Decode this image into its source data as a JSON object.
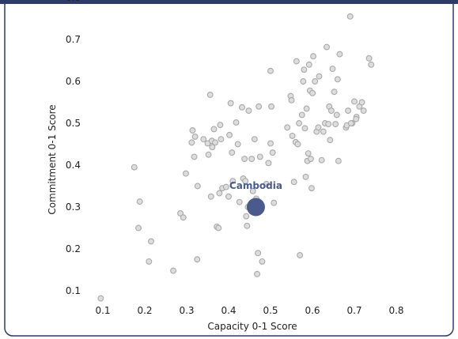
{
  "chart_data": {
    "type": "scatter",
    "xlabel": "Capacity 0-1 Score",
    "ylabel": "Commitment 0-1 Score",
    "xlim": [
      0.1,
      0.8
    ],
    "ylim": [
      0.1,
      0.8
    ],
    "xticks": [
      "0.1",
      "0.2",
      "0.3",
      "0.4",
      "0.5",
      "0.6",
      "0.7",
      "0.8"
    ],
    "yticks": [
      "0.1",
      "0.2",
      "0.3",
      "0.4",
      "0.5",
      "0.6",
      "0.7",
      "0.8"
    ],
    "grid": false,
    "legend": "none",
    "highlight": {
      "label": "Cambodia",
      "x": 0.465,
      "y": 0.3
    },
    "points": [
      [
        0.095,
        0.082
      ],
      [
        0.175,
        0.395
      ],
      [
        0.185,
        0.25
      ],
      [
        0.188,
        0.313
      ],
      [
        0.21,
        0.17
      ],
      [
        0.215,
        0.218
      ],
      [
        0.268,
        0.148
      ],
      [
        0.285,
        0.285
      ],
      [
        0.292,
        0.275
      ],
      [
        0.298,
        0.38
      ],
      [
        0.312,
        0.454
      ],
      [
        0.314,
        0.483
      ],
      [
        0.318,
        0.42
      ],
      [
        0.32,
        0.468
      ],
      [
        0.325,
        0.175
      ],
      [
        0.326,
        0.35
      ],
      [
        0.34,
        0.462
      ],
      [
        0.35,
        0.452
      ],
      [
        0.352,
        0.425
      ],
      [
        0.356,
        0.568
      ],
      [
        0.358,
        0.325
      ],
      [
        0.36,
        0.458
      ],
      [
        0.361,
        0.443
      ],
      [
        0.365,
        0.486
      ],
      [
        0.368,
        0.454
      ],
      [
        0.372,
        0.253
      ],
      [
        0.376,
        0.25
      ],
      [
        0.378,
        0.333
      ],
      [
        0.38,
        0.496
      ],
      [
        0.382,
        0.462
      ],
      [
        0.385,
        0.345
      ],
      [
        0.394,
        0.348
      ],
      [
        0.4,
        0.325
      ],
      [
        0.402,
        0.472
      ],
      [
        0.405,
        0.548
      ],
      [
        0.408,
        0.43
      ],
      [
        0.41,
        0.362
      ],
      [
        0.418,
        0.502
      ],
      [
        0.422,
        0.45
      ],
      [
        0.426,
        0.312
      ],
      [
        0.432,
        0.538
      ],
      [
        0.435,
        0.368
      ],
      [
        0.438,
        0.415
      ],
      [
        0.44,
        0.362
      ],
      [
        0.442,
        0.278
      ],
      [
        0.444,
        0.255
      ],
      [
        0.446,
        0.3
      ],
      [
        0.448,
        0.53
      ],
      [
        0.455,
        0.415
      ],
      [
        0.458,
        0.338
      ],
      [
        0.462,
        0.462
      ],
      [
        0.466,
        0.32
      ],
      [
        0.468,
        0.14
      ],
      [
        0.47,
        0.19
      ],
      [
        0.472,
        0.54
      ],
      [
        0.475,
        0.42
      ],
      [
        0.48,
        0.17
      ],
      [
        0.49,
        0.355
      ],
      [
        0.495,
        0.405
      ],
      [
        0.5,
        0.452
      ],
      [
        0.5,
        0.625
      ],
      [
        0.502,
        0.54
      ],
      [
        0.505,
        0.43
      ],
      [
        0.508,
        0.31
      ],
      [
        0.54,
        0.49
      ],
      [
        0.548,
        0.565
      ],
      [
        0.55,
        0.555
      ],
      [
        0.552,
        0.47
      ],
      [
        0.556,
        0.36
      ],
      [
        0.56,
        0.455
      ],
      [
        0.562,
        0.648
      ],
      [
        0.565,
        0.45
      ],
      [
        0.568,
        0.5
      ],
      [
        0.57,
        0.185
      ],
      [
        0.575,
        0.52
      ],
      [
        0.578,
        0.6
      ],
      [
        0.58,
        0.628
      ],
      [
        0.582,
        0.488
      ],
      [
        0.584,
        0.372
      ],
      [
        0.586,
        0.535
      ],
      [
        0.588,
        0.41
      ],
      [
        0.59,
        0.428
      ],
      [
        0.592,
        0.64
      ],
      [
        0.594,
        0.578
      ],
      [
        0.596,
        0.415
      ],
      [
        0.598,
        0.345
      ],
      [
        0.6,
        0.572
      ],
      [
        0.602,
        0.66
      ],
      [
        0.606,
        0.6
      ],
      [
        0.61,
        0.48
      ],
      [
        0.614,
        0.49
      ],
      [
        0.616,
        0.612
      ],
      [
        0.622,
        0.412
      ],
      [
        0.626,
        0.48
      ],
      [
        0.63,
        0.5
      ],
      [
        0.634,
        0.682
      ],
      [
        0.638,
        0.498
      ],
      [
        0.64,
        0.54
      ],
      [
        0.642,
        0.46
      ],
      [
        0.645,
        0.53
      ],
      [
        0.648,
        0.63
      ],
      [
        0.652,
        0.575
      ],
      [
        0.655,
        0.498
      ],
      [
        0.658,
        0.52
      ],
      [
        0.66,
        0.605
      ],
      [
        0.662,
        0.41
      ],
      [
        0.665,
        0.665
      ],
      [
        0.68,
        0.49
      ],
      [
        0.685,
        0.53
      ],
      [
        0.69,
        0.755
      ],
      [
        0.695,
        0.5
      ],
      [
        0.7,
        0.552
      ],
      [
        0.705,
        0.515
      ],
      [
        0.712,
        0.54
      ],
      [
        0.718,
        0.55
      ],
      [
        0.722,
        0.53
      ],
      [
        0.735,
        0.655
      ],
      [
        0.74,
        0.64
      ],
      [
        0.682,
        0.495
      ],
      [
        0.692,
        0.5
      ],
      [
        0.704,
        0.51
      ]
    ]
  },
  "style": {
    "point_fill": "#dddddd",
    "point_stroke": "#a9a9a9",
    "highlight_color": "#4a5a8c",
    "frame_color": "#2e3b66",
    "text_color": "#222222"
  }
}
